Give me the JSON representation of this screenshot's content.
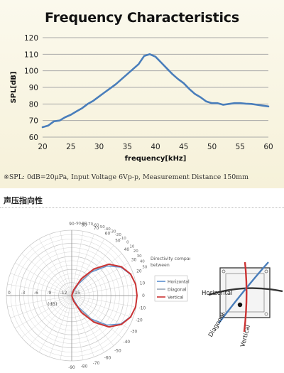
{
  "note": "※SPL: 0dB=20μPa, Input Voltage 6Vp-p, Measurement Distance 150mm",
  "section_title": "声压指向性",
  "chart_data": [
    {
      "type": "line",
      "title": "Frequency Characteristics",
      "xlabel": "frequency[kHz]",
      "ylabel": "SPL[dB]",
      "xlim": [
        20,
        60
      ],
      "ylim": [
        60,
        120
      ],
      "xticks": [
        20,
        25,
        30,
        35,
        40,
        45,
        50,
        55,
        60
      ],
      "yticks": [
        60,
        70,
        80,
        90,
        100,
        110,
        120
      ],
      "grid": "horizontal",
      "color": "#4a7ebb",
      "series": [
        {
          "x": [
            20,
            21,
            22,
            23,
            24,
            25,
            26,
            27,
            28,
            29,
            30,
            31,
            32,
            33,
            34,
            35,
            36,
            37,
            38,
            39,
            40,
            41,
            42,
            43,
            44,
            45,
            46,
            47,
            48,
            49,
            50,
            51,
            52,
            53,
            54,
            55,
            56,
            57,
            58,
            59,
            60
          ],
          "y": [
            66,
            67,
            69.5,
            70,
            72,
            73.5,
            75.5,
            77.5,
            80,
            82,
            84.5,
            87,
            89.5,
            92,
            95,
            98,
            101,
            104,
            109,
            110,
            108.5,
            105,
            101.5,
            98,
            95,
            92.5,
            89,
            86,
            84,
            81.5,
            80.5,
            80.5,
            79.5,
            80,
            80.5,
            80.5,
            80.2,
            80,
            79.5,
            79,
            78.5
          ]
        }
      ]
    },
    {
      "type": "polar",
      "legend_title": "Directivity comparison between",
      "legend_position": "right",
      "radial_labels": [
        "0",
        "-3",
        "-6",
        "-9",
        "-12",
        "-15"
      ],
      "radial_unit": "(dB)",
      "angle_labels_right": [
        "90",
        "80",
        "70",
        "60",
        "50",
        "40",
        "30",
        "20",
        "10",
        "0",
        "-10",
        "-20",
        "-30",
        "-40",
        "-50",
        "-60",
        "-70",
        "-80",
        "-90"
      ],
      "angle_labels_top": [
        "-90",
        "-80",
        "-70",
        "-60",
        "-50",
        "-40",
        "-30",
        "-20",
        "-10",
        "0",
        "10",
        "20",
        "30",
        "40",
        "50",
        "60",
        "70",
        "80",
        "90"
      ],
      "series": [
        {
          "name": "Horizontal",
          "color": "#5b8fd1",
          "angles": [
            -90,
            -80,
            -70,
            -60,
            -50,
            -40,
            -30,
            -20,
            -10,
            0,
            10,
            20,
            30,
            40,
            50,
            60,
            70,
            80,
            90
          ],
          "values": [
            -15,
            -15,
            -14.5,
            -12,
            -8,
            -4.5,
            -2,
            -0.7,
            -0.1,
            0,
            -0.1,
            -0.7,
            -2,
            -4.5,
            -8,
            -12,
            -14.5,
            -15,
            -15
          ]
        },
        {
          "name": "Diagonal",
          "color": "#9aa7b5",
          "angles": [
            -90,
            -80,
            -70,
            -60,
            -50,
            -40,
            -30,
            -20,
            -10,
            0,
            10,
            20,
            30,
            40,
            50,
            60,
            70,
            80,
            90
          ],
          "values": [
            -15,
            -15,
            -14,
            -11.5,
            -7.5,
            -4,
            -1.8,
            -0.6,
            -0.1,
            0,
            -0.1,
            -0.6,
            -1.8,
            -4,
            -7.5,
            -11.5,
            -14,
            -15,
            -15
          ]
        },
        {
          "name": "Vertical",
          "color": "#cc3333",
          "angles": [
            -90,
            -80,
            -70,
            -60,
            -50,
            -40,
            -30,
            -20,
            -10,
            0,
            10,
            20,
            30,
            40,
            50,
            60,
            70,
            80,
            90
          ],
          "values": [
            -15,
            -15,
            -13.5,
            -10.5,
            -7,
            -3.8,
            -1.8,
            -0.6,
            -0.1,
            0,
            -0.1,
            -0.6,
            -1.8,
            -3.8,
            -7,
            -10.5,
            -13.5,
            -15,
            -15
          ]
        }
      ]
    }
  ],
  "diagram": {
    "labels": {
      "horizontal": "Horizontal",
      "diagonal": "Diagonal",
      "vertical": "Vertical"
    },
    "colors": {
      "horizontal": "#333333",
      "diagonal": "#4a7ebb",
      "vertical": "#cc3333"
    }
  }
}
